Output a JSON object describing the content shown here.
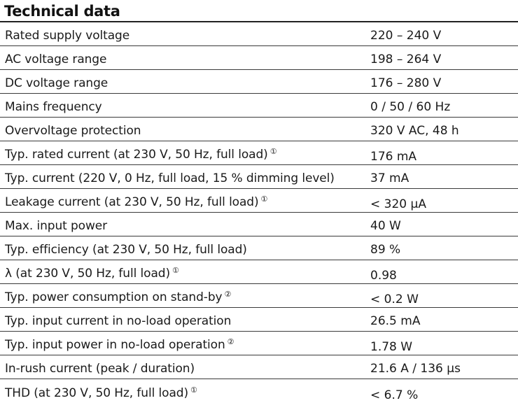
{
  "title": "Technical data",
  "rows": [
    {
      "param": "Rated supply voltage",
      "note": "",
      "value": "220 – 240 V"
    },
    {
      "param": "AC voltage range",
      "note": "",
      "value": "198 – 264 V"
    },
    {
      "param": "DC voltage range",
      "note": "",
      "value": "176 – 280 V"
    },
    {
      "param": "Mains frequency",
      "note": "",
      "value": "0 / 50 / 60 Hz"
    },
    {
      "param": "Overvoltage protection",
      "note": "",
      "value": "320 V AC, 48 h"
    },
    {
      "param": "Typ. rated current (at 230 V, 50 Hz, full load)",
      "note": "①",
      "value": "176 mA"
    },
    {
      "param": "Typ. current (220 V, 0 Hz, full load, 15 % dimming level)",
      "note": "",
      "value": "37 mA"
    },
    {
      "param": "Leakage current (at 230 V, 50 Hz, full load)",
      "note": "①",
      "value": "< 320 µA"
    },
    {
      "param": "Max. input power",
      "note": "",
      "value": "40 W"
    },
    {
      "param": "Typ. efficiency (at 230 V, 50 Hz, full load)",
      "note": "",
      "value": "89 %"
    },
    {
      "param": "λ (at 230 V, 50 Hz, full load)",
      "note": "①",
      "value": "0.98"
    },
    {
      "param": "Typ. power consumption on stand-by",
      "note": "②",
      "value": "< 0.2 W"
    },
    {
      "param": "Typ. input current in no-load operation",
      "note": "",
      "value": "26.5 mA"
    },
    {
      "param": "Typ. input power in no-load operation",
      "note": "②",
      "value": "1.78 W"
    },
    {
      "param": "In-rush current (peak / duration)",
      "note": "",
      "value": "21.6 A / 136 µs"
    },
    {
      "param": "THD (at 230 V, 50 Hz, full load)",
      "note": "①",
      "value": "< 6.7 %"
    }
  ]
}
